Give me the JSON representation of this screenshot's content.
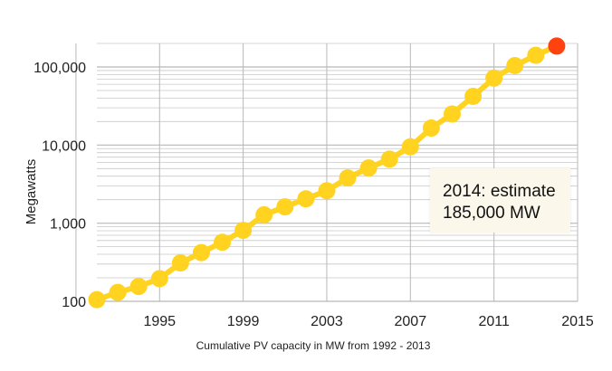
{
  "chart_data": {
    "type": "line",
    "title": "",
    "xlabel": "Cumulative PV capacity in MW from 1992 - 2013",
    "ylabel": "Megawatts",
    "yscale": "log",
    "ylim": [
      100,
      200000
    ],
    "xlim": [
      1992,
      2015
    ],
    "x_ticks": [
      "1995",
      "1999",
      "2003",
      "2007",
      "2011",
      "2015"
    ],
    "y_ticks": [
      "100",
      "1,000",
      "10,000",
      "100,000"
    ],
    "grid": true,
    "series": [
      {
        "color": "#ffd320",
        "x": [
          1992,
          1993,
          1994,
          1995,
          1996,
          1997,
          1998,
          1999,
          2000,
          2001,
          2002,
          2003,
          2004,
          2005,
          2006,
          2007,
          2008,
          2009,
          2010,
          2011,
          2012,
          2013
        ],
        "values": [
          105,
          130,
          155,
          195,
          310,
          420,
          570,
          810,
          1280,
          1620,
          2050,
          2600,
          3800,
          5100,
          6600,
          9500,
          16500,
          25000,
          42000,
          72000,
          104000,
          141000
        ]
      },
      {
        "color": "#ff420e",
        "x": [
          2014
        ],
        "values": [
          185000
        ]
      }
    ],
    "annotations": [
      {
        "lines": [
          "2014: estimate",
          "185,000 MW"
        ]
      }
    ]
  }
}
